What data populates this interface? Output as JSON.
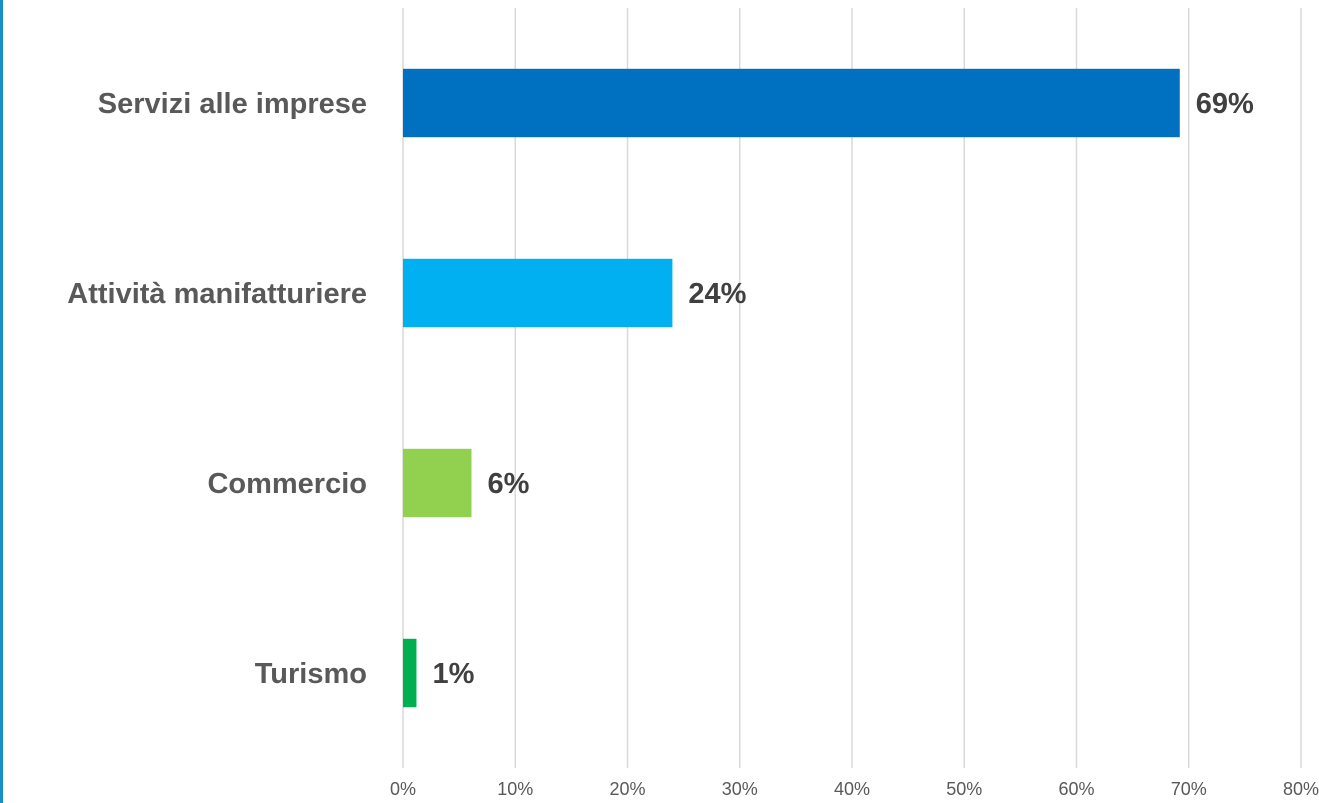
{
  "chart_data": {
    "type": "bar",
    "orientation": "horizontal",
    "categories": [
      "Servizi alle imprese",
      "Attività manifatturiere",
      "Commercio",
      "Turismo"
    ],
    "values": [
      69.2,
      24,
      6.1,
      1.2
    ],
    "data_labels": [
      "69%",
      "24%",
      "6%",
      "1%"
    ],
    "colors": [
      "#0070c0",
      "#00b0f0",
      "#92d050",
      "#00b050"
    ],
    "xlim": [
      0,
      80
    ],
    "x_ticks": [
      0,
      10,
      20,
      30,
      40,
      50,
      60,
      70,
      80
    ],
    "x_tick_labels": [
      "0%",
      "10%",
      "20%",
      "30%",
      "40%",
      "50%",
      "60%",
      "70%",
      "80%"
    ],
    "grid": "vertical",
    "legend": "none"
  }
}
